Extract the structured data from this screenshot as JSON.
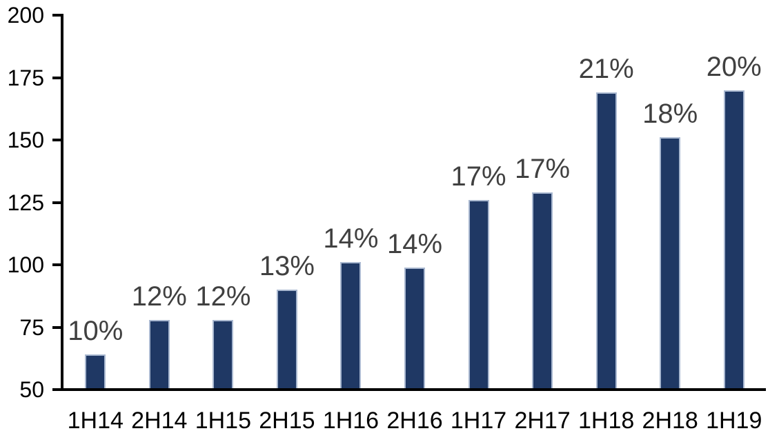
{
  "chart_data": {
    "type": "bar",
    "title": "",
    "xlabel": "",
    "ylabel": "",
    "categories": [
      "1H14",
      "2H14",
      "1H15",
      "2H15",
      "1H16",
      "2H16",
      "1H17",
      "2H17",
      "1H18",
      "2H18",
      "1H19"
    ],
    "values": [
      64,
      78,
      78,
      90,
      101,
      99,
      126,
      129,
      169,
      151,
      170
    ],
    "data_labels": [
      "10%",
      "12%",
      "12%",
      "13%",
      "14%",
      "14%",
      "17%",
      "17%",
      "21%",
      "18%",
      "20%"
    ],
    "ylim": [
      50,
      200
    ],
    "yticks": [
      50,
      75,
      100,
      125,
      150,
      175,
      200
    ],
    "grid": false,
    "legend": "none",
    "colors": {
      "bar_fill": "#1F3864",
      "bar_border": "#A9B8D0",
      "data_label": "#404040",
      "axis": "#000000",
      "tick_label": "#000000",
      "background": "#FFFFFF"
    }
  }
}
